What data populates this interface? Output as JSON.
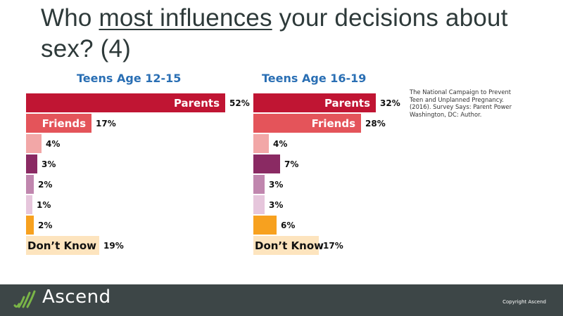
{
  "title": {
    "before": "Who ",
    "underlined": "most influences",
    "after": " your decisions about sex? (4)"
  },
  "chart_data": [
    {
      "type": "bar",
      "orientation": "horizontal",
      "title": "Teens Age 12-15",
      "unit": "%",
      "bars": [
        {
          "label": "Parents",
          "value": 52,
          "value_label": "52%",
          "color": "#c01533",
          "label_color": "#ffffff"
        },
        {
          "label": "Friends",
          "value": 17,
          "value_label": "17%",
          "color": "#e4545a",
          "label_color": "#ffffff"
        },
        {
          "label": "",
          "value": 4,
          "value_label": "4%",
          "color": "#f2a7a7",
          "label_color": "#ffffff"
        },
        {
          "label": "",
          "value": 3,
          "value_label": "3%",
          "color": "#8a2a63",
          "label_color": "#ffffff"
        },
        {
          "label": "",
          "value": 2,
          "value_label": "2%",
          "color": "#c086ae",
          "label_color": "#ffffff"
        },
        {
          "label": "",
          "value": 1,
          "value_label": "1%",
          "color": "#e6c6dc",
          "label_color": "#ffffff"
        },
        {
          "label": "",
          "value": 2,
          "value_label": "2%",
          "color": "#f7a11f",
          "label_color": "#ffffff"
        },
        {
          "label": "Don’t Know",
          "value": 19,
          "value_label": "19%",
          "color": "#fde4be",
          "label_color": "#111111"
        }
      ]
    },
    {
      "type": "bar",
      "orientation": "horizontal",
      "title": "Teens Age 16-19",
      "unit": "%",
      "bars": [
        {
          "label": "Parents",
          "value": 32,
          "value_label": "32%",
          "color": "#c01533",
          "label_color": "#ffffff"
        },
        {
          "label": "Friends",
          "value": 28,
          "value_label": "28%",
          "color": "#e4545a",
          "label_color": "#ffffff"
        },
        {
          "label": "",
          "value": 4,
          "value_label": "4%",
          "color": "#f2a7a7",
          "label_color": "#ffffff"
        },
        {
          "label": "",
          "value": 7,
          "value_label": "7%",
          "color": "#8a2a63",
          "label_color": "#ffffff"
        },
        {
          "label": "",
          "value": 3,
          "value_label": "3%",
          "color": "#c086ae",
          "label_color": "#ffffff"
        },
        {
          "label": "",
          "value": 3,
          "value_label": "3%",
          "color": "#e6c6dc",
          "label_color": "#ffffff"
        },
        {
          "label": "",
          "value": 6,
          "value_label": "6%",
          "color": "#f7a11f",
          "label_color": "#ffffff"
        },
        {
          "label": "Don’t Know",
          "value": 17,
          "value_label": "17%",
          "color": "#fde4be",
          "label_color": "#111111"
        }
      ]
    }
  ],
  "citation": "The National Campaign to Prevent Teen and Unplanned Pregnancy. (2016). Survey Says: Parent Power Washington, DC: Author.",
  "footer": {
    "brand": "Ascend",
    "copyright": "Copyright Ascend",
    "background_color": "#3d4647",
    "logo_color": "#7ab547"
  }
}
